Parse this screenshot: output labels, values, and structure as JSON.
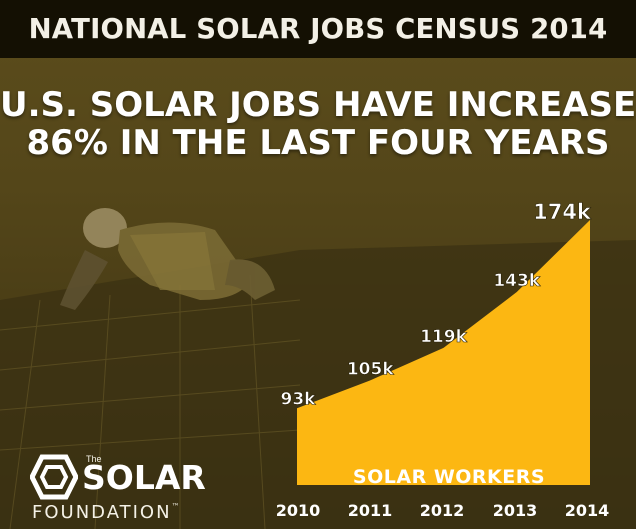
{
  "banner": {
    "title": "NATIONAL SOLAR JOBS CENSUS 2014"
  },
  "headline": {
    "line1": "U.S. SOLAR JOBS HAVE INCREASED",
    "line2": "86% IN THE LAST FOUR YEARS"
  },
  "logo": {
    "the": "The",
    "name": "SOLAR",
    "sub": "FOUNDATION",
    "tm": "™",
    "icon": "hexagon-logo-icon"
  },
  "colors": {
    "area_fill": "#fcb712",
    "label_text": "#ffffff",
    "banner_bg": "#141003",
    "photo_tint": "#5a4c1a"
  },
  "chart_data": {
    "type": "area",
    "categories": [
      "2010",
      "2011",
      "2012",
      "2013",
      "2014"
    ],
    "values": [
      93,
      105,
      119,
      143,
      174
    ],
    "labels": [
      "93k",
      "105k",
      "119k",
      "143k",
      "174k"
    ],
    "series": [
      {
        "name": "SOLAR WORKERS",
        "values": [
          93,
          105,
          119,
          143,
          174
        ]
      }
    ],
    "title": "U.S. SOLAR JOBS HAVE INCREASED 86% IN THE LAST FOUR YEARS",
    "xlabel": "",
    "ylabel": "",
    "ylim": [
      0,
      174
    ],
    "grid": false,
    "legend": "none"
  }
}
